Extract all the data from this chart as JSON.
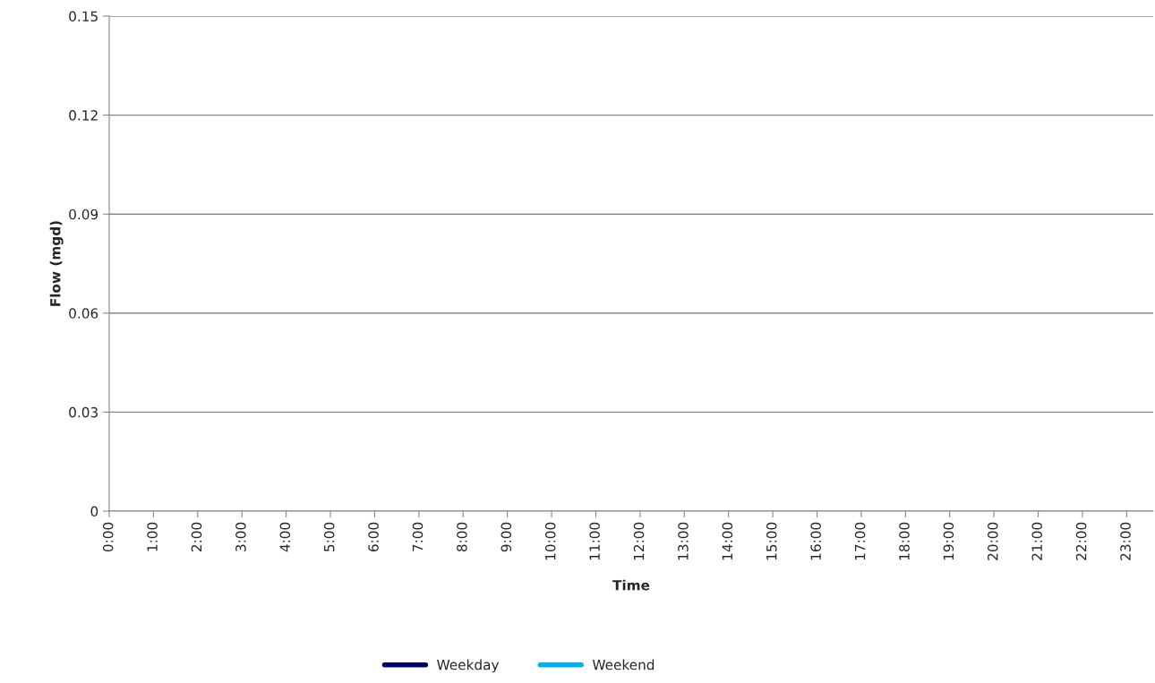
{
  "chart_data": {
    "type": "line",
    "xlabel": "Time",
    "ylabel": "Flow (mgd)",
    "categories": [
      "0:00",
      "1:00",
      "2:00",
      "3:00",
      "4:00",
      "5:00",
      "6:00",
      "7:00",
      "8:00",
      "9:00",
      "10:00",
      "11:00",
      "12:00",
      "13:00",
      "14:00",
      "15:00",
      "16:00",
      "17:00",
      "18:00",
      "19:00",
      "20:00",
      "21:00",
      "22:00",
      "23:00"
    ],
    "series": [
      {
        "name": "Weekday",
        "color": "#000066",
        "values": [
          null,
          null,
          null,
          null,
          null,
          null,
          null,
          null,
          null,
          null,
          null,
          null,
          null,
          null,
          null,
          null,
          null,
          null,
          null,
          null,
          null,
          null,
          null,
          null
        ]
      },
      {
        "name": "Weekend",
        "color": "#00b0f0",
        "values": [
          null,
          null,
          null,
          null,
          null,
          null,
          null,
          null,
          null,
          null,
          null,
          null,
          null,
          null,
          null,
          null,
          null,
          null,
          null,
          null,
          null,
          null,
          null,
          null
        ]
      }
    ],
    "ylim": [
      0,
      0.15
    ],
    "yticks": [
      {
        "value": 0,
        "label": "0"
      },
      0.03,
      0.06,
      0.09,
      0.12,
      0.15
    ],
    "grid": "y",
    "legend": "bottom"
  }
}
